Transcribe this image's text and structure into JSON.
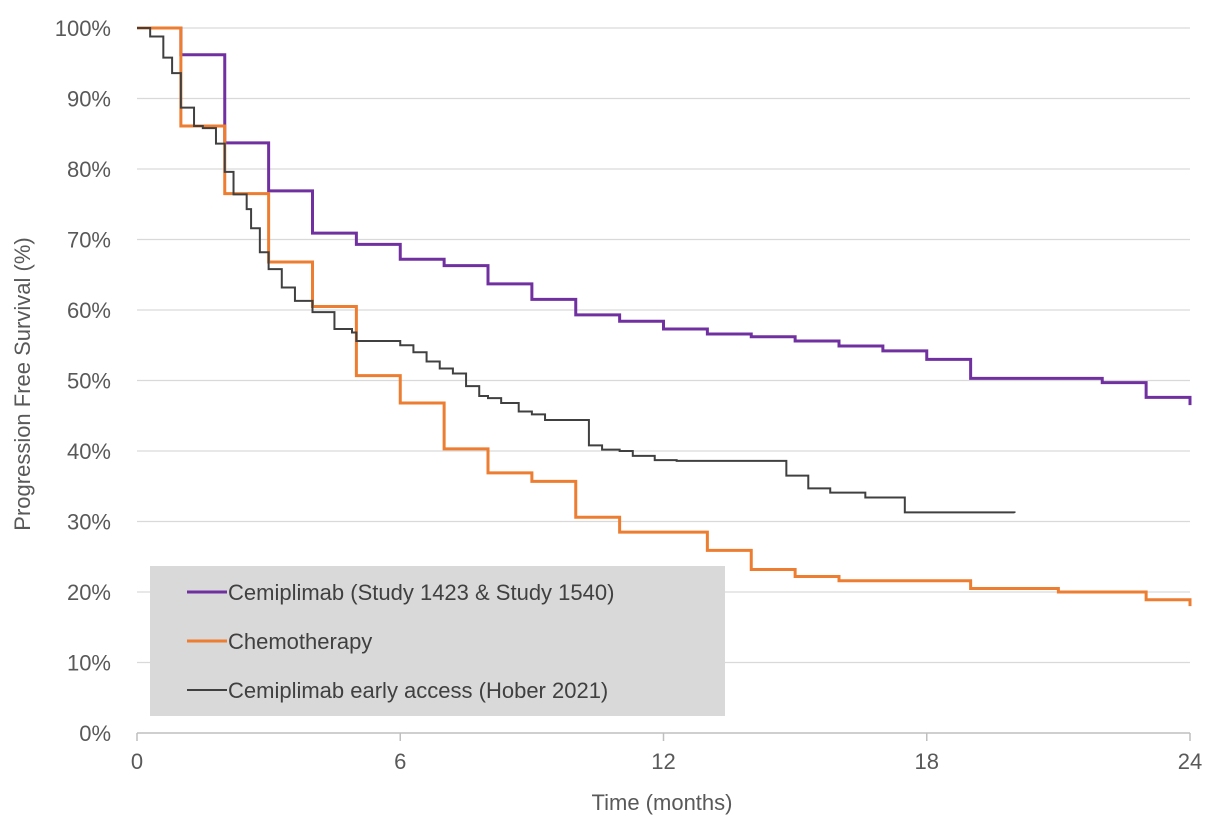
{
  "chart_data": {
    "type": "line",
    "subtype": "step",
    "title": "",
    "xlabel": "Time (months)",
    "ylabel": "Progression Free Survival (%)",
    "xlim": [
      0,
      24
    ],
    "ylim": [
      0,
      100
    ],
    "xticks": [
      0,
      6,
      12,
      18,
      24
    ],
    "xtick_labels": [
      "0",
      "6",
      "12",
      "18",
      "24"
    ],
    "yticks": [
      0,
      10,
      20,
      30,
      40,
      50,
      60,
      70,
      80,
      90,
      100
    ],
    "ytick_labels": [
      "0%",
      "10%",
      "20%",
      "30%",
      "40%",
      "50%",
      "60%",
      "70%",
      "80%",
      "90%",
      "100%"
    ],
    "grid": "horizontal",
    "legend_position": "bottom-left",
    "series": [
      {
        "name": "Cemiplimab (Study 1423 & Study 1540)",
        "color": "#7030a0",
        "x": [
          0,
          1,
          2,
          3,
          4,
          5,
          6,
          7,
          8,
          9,
          10,
          11,
          12,
          13,
          14,
          15,
          16,
          17,
          18,
          19,
          22,
          23,
          24
        ],
        "y": [
          100,
          96.2,
          83.7,
          76.9,
          70.9,
          69.3,
          67.2,
          66.3,
          63.7,
          61.5,
          59.3,
          58.4,
          57.3,
          56.6,
          56.2,
          55.6,
          54.9,
          54.2,
          53.0,
          50.3,
          49.7,
          47.6,
          46.5
        ]
      },
      {
        "name": "Chemotherapy",
        "color": "#ed7d31",
        "x": [
          0,
          1,
          2,
          3,
          4,
          5,
          6,
          7,
          8,
          9,
          10,
          11,
          13,
          14,
          15,
          16,
          19,
          21,
          23,
          24
        ],
        "y": [
          100,
          86.1,
          76.5,
          66.8,
          60.5,
          50.7,
          46.8,
          40.3,
          36.9,
          35.7,
          30.6,
          28.5,
          25.9,
          23.2,
          22.2,
          21.6,
          20.5,
          20.0,
          18.9,
          18.0
        ]
      },
      {
        "name": "Cemiplimab early access (Hober 2021)",
        "color": "#404040",
        "x": [
          0,
          0.3,
          0.6,
          0.8,
          1.0,
          1.3,
          1.5,
          1.8,
          2.0,
          2.2,
          2.5,
          2.6,
          2.8,
          3.0,
          3.3,
          3.6,
          4.0,
          4.5,
          4.9,
          5.0,
          6.0,
          6.3,
          6.6,
          6.9,
          7.2,
          7.5,
          7.8,
          8.0,
          8.3,
          8.7,
          9.0,
          9.3,
          9.8,
          10.3,
          10.6,
          11.0,
          11.3,
          11.8,
          12.3,
          14.5,
          14.8,
          15.3,
          15.8,
          16.6,
          17.5,
          20.0
        ],
        "y": [
          100,
          98.8,
          95.8,
          93.6,
          88.7,
          86.1,
          85.8,
          83.6,
          79.6,
          76.4,
          74.3,
          71.6,
          68.2,
          65.8,
          63.2,
          61.3,
          59.7,
          57.3,
          56.8,
          55.6,
          55.0,
          54.0,
          52.7,
          51.7,
          51.0,
          49.2,
          47.8,
          47.5,
          46.8,
          45.6,
          45.2,
          44.4,
          44.4,
          40.8,
          40.2,
          40.0,
          39.3,
          38.7,
          38.6,
          38.6,
          36.5,
          34.7,
          34.1,
          33.4,
          31.3,
          31.2
        ]
      }
    ]
  }
}
